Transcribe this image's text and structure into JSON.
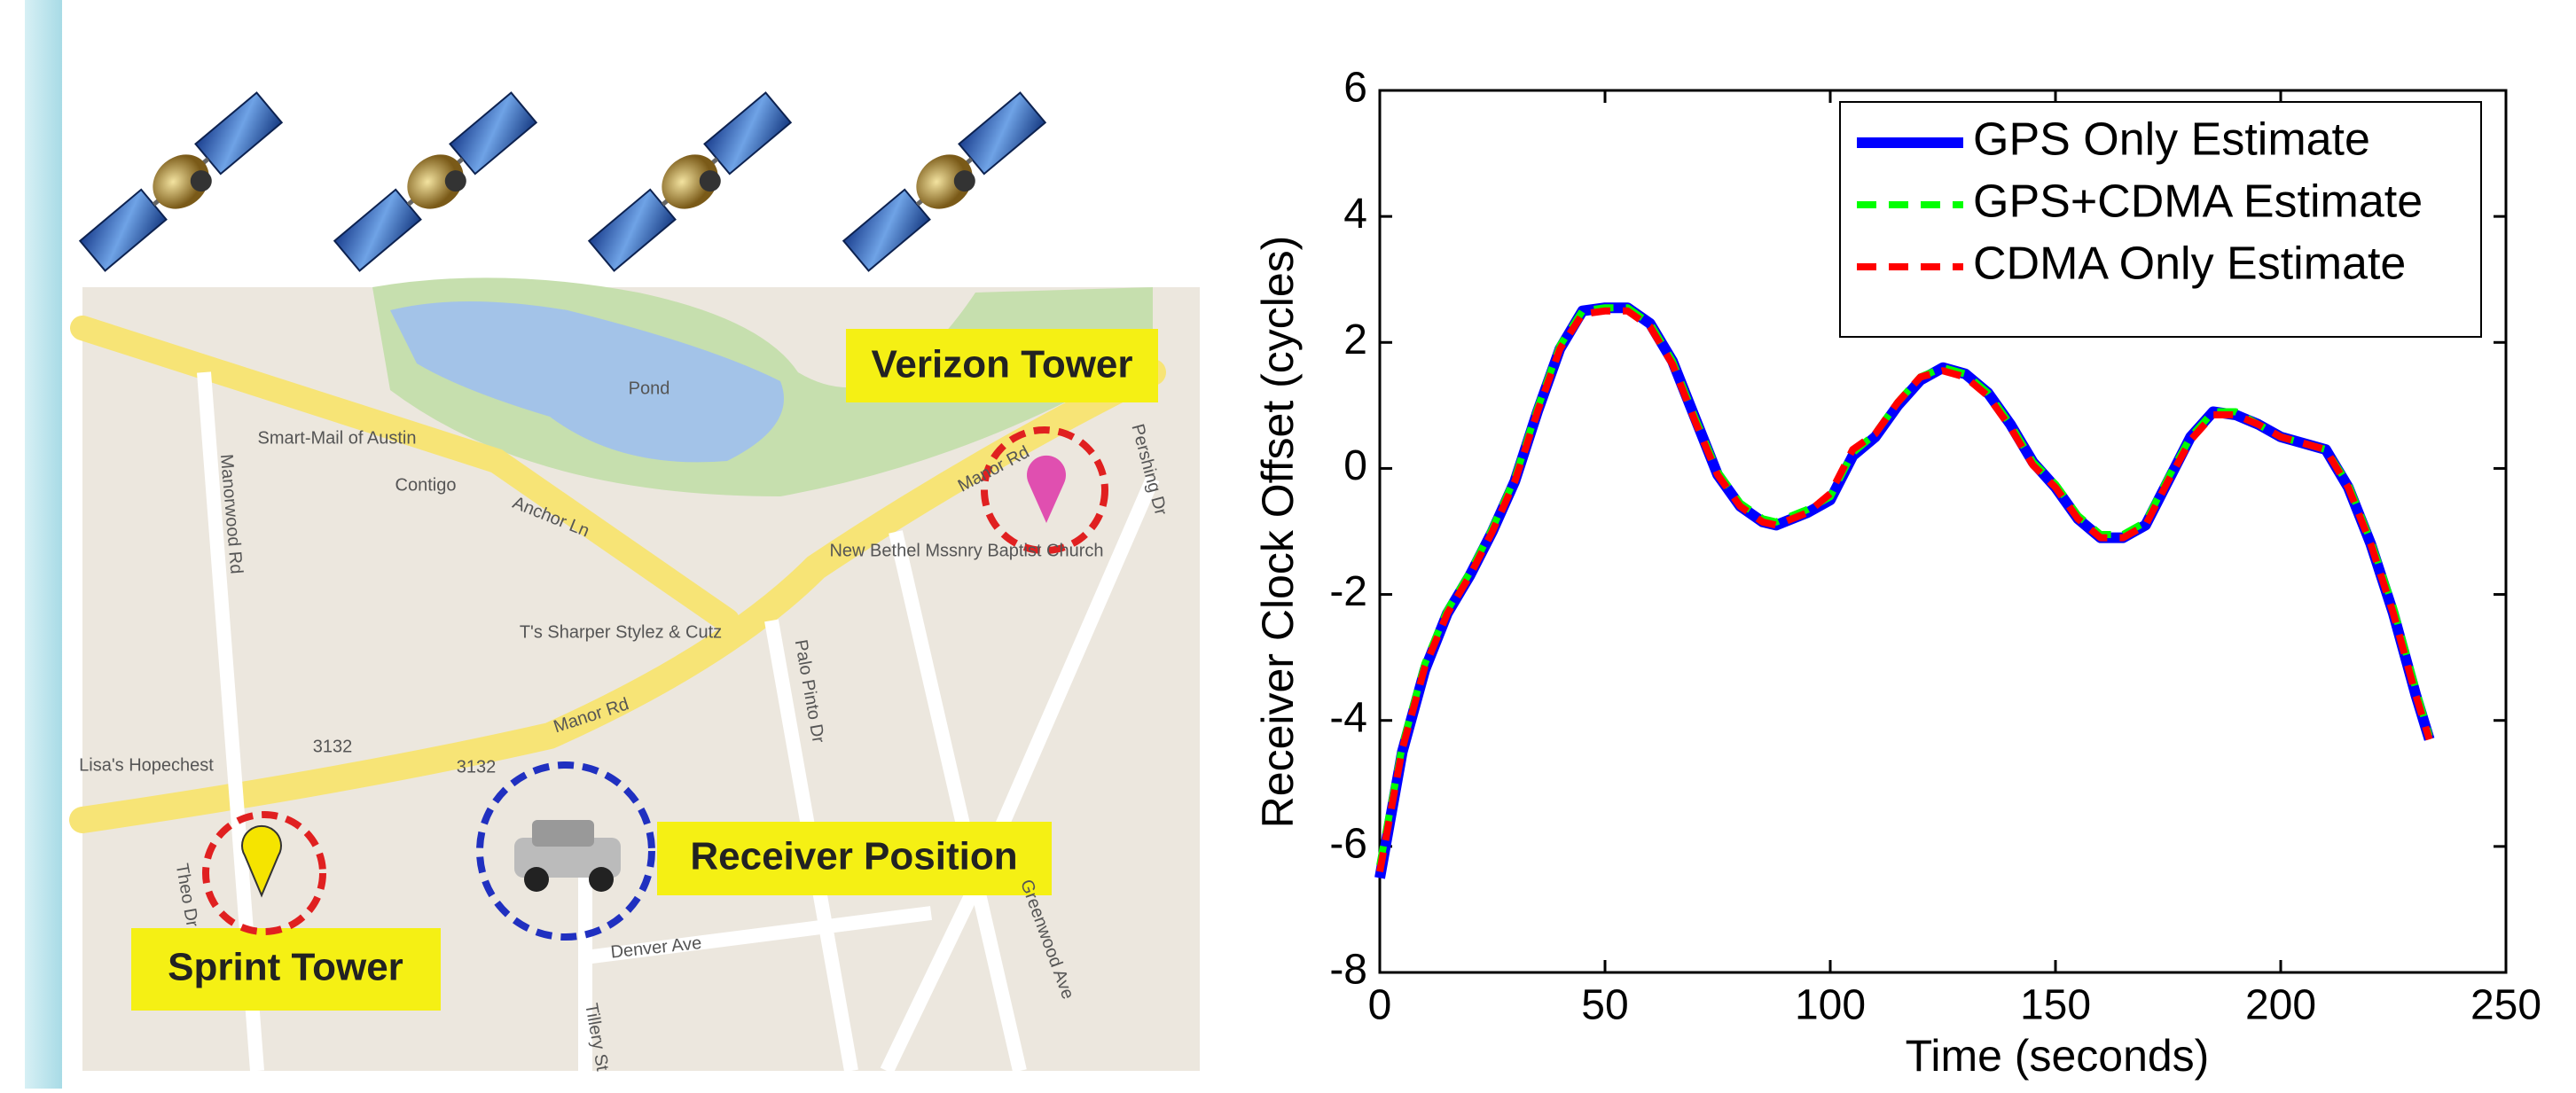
{
  "map": {
    "labels": [
      "Verizon Tower",
      "Sprint Tower",
      "Receiver Position",
      "Pond",
      "Anchor Ln",
      "Manor Rd",
      "Manor Rd",
      "Palo Pinto Dr",
      "Manorwood Rd",
      "Pershing Dr",
      "Denver Ave",
      "Tillery St",
      "Theo Dr",
      "Greenwood Ave",
      "Smart-Mail of Austin",
      "Contigo",
      "New Bethel Mssnry Baptist Church",
      "T's Sharper Stylez & Cutz",
      "Lisa's Hopechest",
      "3132",
      "3132"
    ]
  },
  "chart_data": {
    "type": "line",
    "xlabel": "Time (seconds)",
    "ylabel": "Receiver Clock Offset (cycles)",
    "x": [
      0,
      5,
      10,
      15,
      20,
      25,
      30,
      35,
      40,
      45,
      50,
      55,
      60,
      65,
      70,
      75,
      80,
      85,
      88,
      95,
      100,
      105,
      110,
      115,
      120,
      125,
      130,
      135,
      140,
      145,
      150,
      155,
      160,
      165,
      170,
      175,
      180,
      185,
      190,
      195,
      200,
      205,
      210,
      215,
      220,
      225,
      230,
      233
    ],
    "series": [
      {
        "name": "GPS Only Estimate",
        "color": "#0000ff",
        "values": [
          -6.5,
          -4.5,
          -3.2,
          -2.3,
          -1.7,
          -1.0,
          -0.2,
          0.9,
          1.9,
          2.5,
          2.55,
          2.55,
          2.3,
          1.7,
          0.8,
          -0.1,
          -0.6,
          -0.85,
          -0.9,
          -0.7,
          -0.5,
          0.2,
          0.5,
          1.0,
          1.4,
          1.6,
          1.5,
          1.2,
          0.7,
          0.1,
          -0.3,
          -0.8,
          -1.1,
          -1.1,
          -0.9,
          -0.2,
          0.5,
          0.9,
          0.85,
          0.7,
          0.5,
          0.4,
          0.3,
          -0.3,
          -1.2,
          -2.3,
          -3.6,
          -4.3
        ]
      },
      {
        "name": "GPS+CDMA Estimate",
        "color": "#00ff00",
        "values": [
          -6.3,
          -4.4,
          -3.1,
          -2.25,
          -1.65,
          -0.95,
          -0.15,
          0.95,
          1.95,
          2.5,
          2.55,
          2.55,
          2.3,
          1.7,
          0.8,
          -0.05,
          -0.55,
          -0.8,
          -0.85,
          -0.65,
          -0.45,
          0.25,
          0.55,
          1.05,
          1.45,
          1.6,
          1.5,
          1.2,
          0.7,
          0.1,
          -0.25,
          -0.75,
          -1.05,
          -1.05,
          -0.85,
          -0.15,
          0.5,
          0.9,
          0.9,
          0.7,
          0.5,
          0.4,
          0.3,
          -0.25,
          -1.15,
          -2.2,
          -3.5,
          -4.25
        ]
      },
      {
        "name": "CDMA Only Estimate",
        "color": "#ff0000",
        "values": [
          -6.4,
          -4.45,
          -3.15,
          -2.3,
          -1.7,
          -1.0,
          -0.2,
          0.9,
          1.9,
          2.45,
          2.5,
          2.5,
          2.25,
          1.65,
          0.75,
          -0.1,
          -0.6,
          -0.85,
          -0.9,
          -0.7,
          -0.4,
          0.3,
          0.55,
          1.05,
          1.45,
          1.55,
          1.45,
          1.15,
          0.65,
          0.05,
          -0.3,
          -0.8,
          -1.1,
          -1.1,
          -0.9,
          -0.2,
          0.45,
          0.85,
          0.85,
          0.7,
          0.5,
          0.4,
          0.3,
          -0.3,
          -1.2,
          -2.3,
          -3.6,
          -4.3
        ]
      }
    ],
    "xlim": [
      0,
      250
    ],
    "xticks": [
      0,
      50,
      100,
      150,
      200,
      250
    ],
    "ylim": [
      -8,
      6
    ],
    "yticks": [
      -8,
      -6,
      -4,
      -2,
      0,
      2,
      4,
      6
    ],
    "legend": "upper right"
  }
}
